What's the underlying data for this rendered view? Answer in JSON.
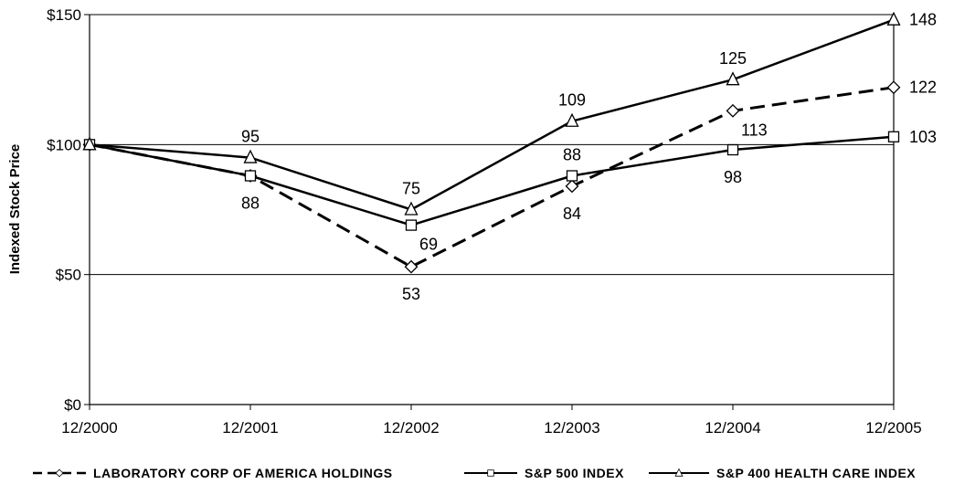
{
  "chart_data": {
    "type": "line",
    "categories": [
      "12/2000",
      "12/2001",
      "12/2002",
      "12/2003",
      "12/2004",
      "12/2005"
    ],
    "ylabel": "Indexed Stock Price",
    "ylim": [
      0,
      150
    ],
    "yticks": [
      {
        "value": 0,
        "label": "$0"
      },
      {
        "value": 50,
        "label": "$50"
      },
      {
        "value": 100,
        "label": "$100"
      },
      {
        "value": 150,
        "label": "$150"
      }
    ],
    "grid": "horizontal",
    "legend_position": "bottom",
    "series": [
      {
        "name": "LABORATORY CORP OF AMERICA HOLDINGS",
        "values": [
          100,
          88,
          53,
          84,
          113,
          122
        ],
        "marker": "diamond",
        "line_style": "dashed",
        "labels": [
          "",
          "",
          "53",
          "84",
          "113",
          "122"
        ]
      },
      {
        "name": "S&P 500 INDEX",
        "values": [
          100,
          88,
          69,
          88,
          98,
          103
        ],
        "marker": "square",
        "line_style": "solid",
        "labels": [
          "",
          "88",
          "69",
          "88",
          "98",
          "103"
        ]
      },
      {
        "name": "S&P 400 HEALTH CARE INDEX",
        "values": [
          100,
          95,
          75,
          109,
          125,
          148
        ],
        "marker": "triangle",
        "line_style": "solid",
        "labels": [
          "",
          "95",
          "75",
          "109",
          "125",
          "148"
        ]
      }
    ]
  }
}
